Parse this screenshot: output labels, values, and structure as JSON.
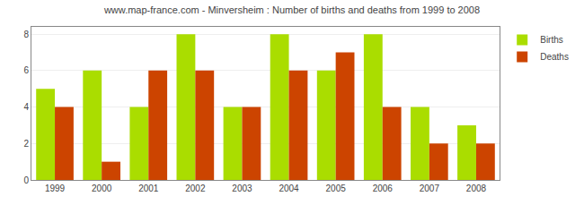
{
  "chart_data": {
    "type": "bar",
    "title": "www.map-france.com - Minversheim : Number of births and deaths from 1999 to 2008",
    "categories": [
      "1999",
      "2000",
      "2001",
      "2002",
      "2003",
      "2004",
      "2005",
      "2006",
      "2007",
      "2008"
    ],
    "series": [
      {
        "name": "Births",
        "color": "#aadd00",
        "values": [
          5,
          6,
          4,
          8,
          4,
          8,
          6,
          8,
          4,
          3
        ]
      },
      {
        "name": "Deaths",
        "color": "#cc4400",
        "values": [
          4,
          1,
          6,
          6,
          4,
          6,
          7,
          4,
          2,
          2
        ]
      }
    ],
    "ylim": [
      0,
      8.4
    ],
    "yticks": [
      0,
      2,
      4,
      6,
      8
    ],
    "grid": true,
    "legend": "upper right"
  }
}
